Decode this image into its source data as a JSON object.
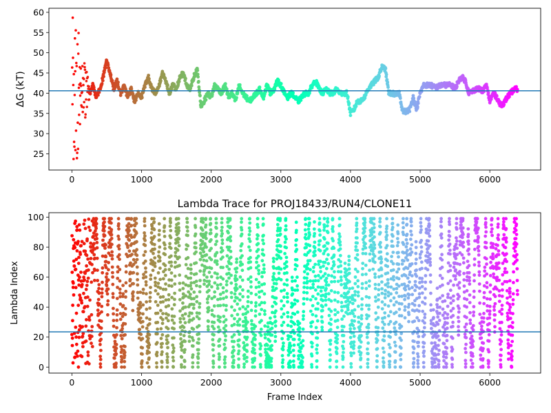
{
  "chart_data": [
    {
      "type": "scatter",
      "title": "",
      "xlabel": "",
      "ylabel": "ΔG (kT)",
      "xlim": [
        -330,
        6730
      ],
      "ylim": [
        21,
        61
      ],
      "xticks": [
        0,
        1000,
        2000,
        3000,
        4000,
        5000,
        6000
      ],
      "yticks": [
        25,
        30,
        35,
        40,
        45,
        50,
        55,
        60
      ],
      "grid": false,
      "colormap": "rainbow (red at frame 0 → violet at last frame)",
      "hline": {
        "y": 40.6,
        "color": "#1f77b4"
      },
      "n_frames": 6400,
      "trace_keypoints": {
        "x": [
          0,
          30,
          60,
          90,
          120,
          150,
          180,
          220,
          260,
          300,
          350,
          400,
          450,
          500,
          550,
          600,
          650,
          700,
          750,
          800,
          850,
          900,
          950,
          1000,
          1050,
          1100,
          1150,
          1200,
          1250,
          1300,
          1350,
          1400,
          1450,
          1500,
          1550,
          1600,
          1650,
          1700,
          1750,
          1800,
          1850,
          1900,
          1950,
          2000,
          2050,
          2100,
          2150,
          2200,
          2250,
          2300,
          2350,
          2400,
          2450,
          2500,
          2550,
          2600,
          2650,
          2700,
          2750,
          2800,
          2850,
          2900,
          2950,
          3000,
          3050,
          3100,
          3150,
          3200,
          3250,
          3300,
          3350,
          3400,
          3450,
          3500,
          3550,
          3600,
          3650,
          3700,
          3750,
          3800,
          3850,
          3900,
          3950,
          4000,
          4050,
          4100,
          4150,
          4200,
          4250,
          4300,
          4350,
          4400,
          4450,
          4500,
          4550,
          4600,
          4650,
          4700,
          4750,
          4800,
          4850,
          4900,
          4950,
          5000,
          5050,
          5100,
          5150,
          5200,
          5250,
          5300,
          5350,
          5400,
          5450,
          5500,
          5550,
          5600,
          5650,
          5700,
          5750,
          5800,
          5850,
          5900,
          5950,
          6000,
          6050,
          6100,
          6150,
          6200,
          6250,
          6300,
          6350,
          6400
        ],
        "y": [
          40,
          42,
          38,
          44,
          36,
          46,
          37,
          43,
          40,
          42,
          39,
          41,
          44,
          48,
          45,
          41,
          43,
          40,
          42,
          39,
          41,
          38,
          40,
          39,
          42,
          44,
          41,
          40,
          42,
          45,
          43,
          40,
          42,
          41,
          44,
          45,
          42,
          41,
          44,
          46,
          37,
          38,
          40,
          39,
          42,
          41,
          40,
          42,
          39,
          40,
          38,
          42,
          40,
          39,
          38,
          39,
          40,
          41,
          39,
          42,
          40,
          41,
          43,
          42,
          40,
          39,
          40,
          39,
          38,
          39,
          40,
          40,
          42,
          43,
          41,
          40,
          41,
          40,
          40,
          41,
          40,
          40,
          40,
          35,
          36,
          38,
          38,
          39,
          41,
          42,
          43,
          44,
          46.5,
          46,
          40,
          40,
          39.5,
          40,
          35.5,
          35.5,
          36,
          39,
          36,
          40,
          42,
          42,
          42,
          41.5,
          41.5,
          42,
          42,
          42,
          42,
          41,
          43,
          44,
          43,
          40,
          40.5,
          41,
          41,
          40.5,
          42,
          38,
          40,
          39,
          37,
          37.5,
          39,
          40,
          41,
          41
        ]
      }
    },
    {
      "type": "scatter",
      "title": "Lambda Trace for PROJ18433/RUN4/CLONE11",
      "xlabel": "Frame Index",
      "ylabel": "Lambda Index",
      "xlim": [
        -330,
        6730
      ],
      "ylim": [
        -4,
        103
      ],
      "xticks": [
        0,
        1000,
        2000,
        3000,
        4000,
        5000,
        6000
      ],
      "yticks": [
        0,
        20,
        40,
        60,
        80,
        100
      ],
      "grid": false,
      "colormap": "rainbow (red at frame 0 → violet at last frame)",
      "hline": {
        "y": 23.5,
        "color": "#1f77b4"
      },
      "n_frames": 6400,
      "lambda_range": [
        0,
        99
      ]
    }
  ]
}
